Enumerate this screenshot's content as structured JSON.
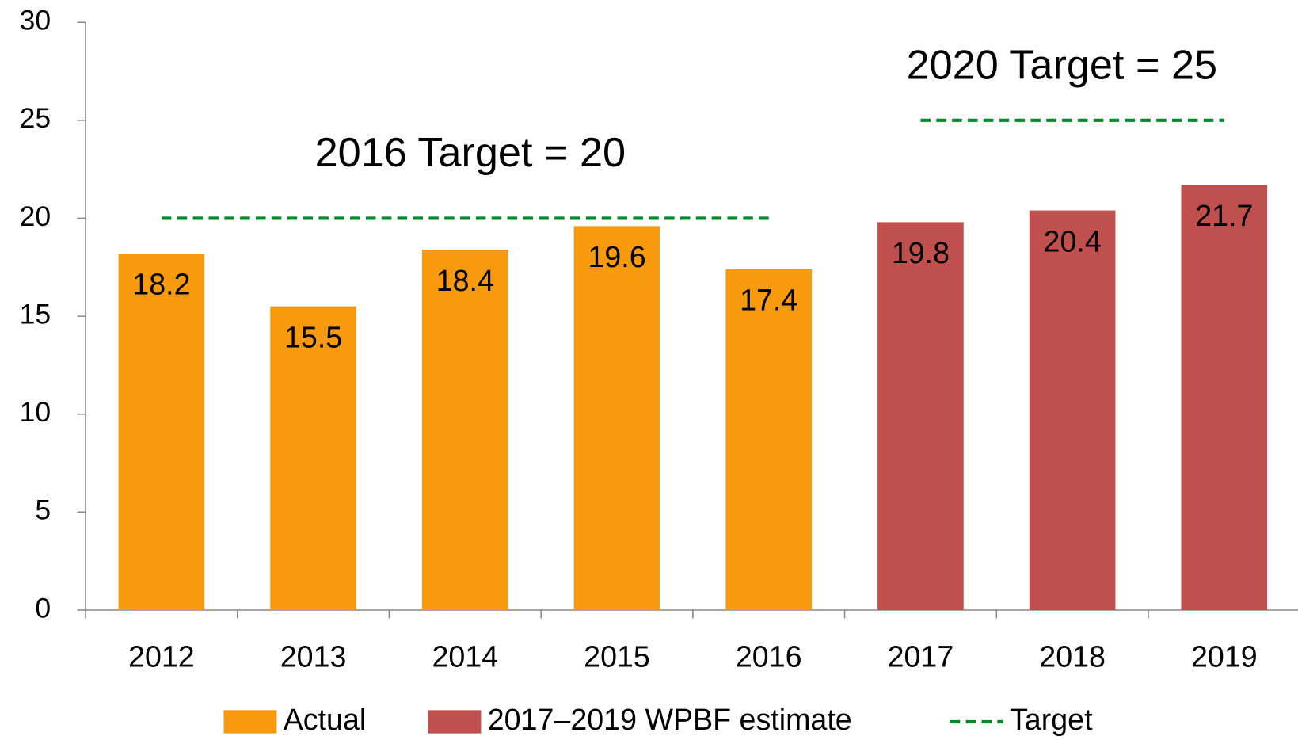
{
  "chart_data": {
    "type": "bar",
    "categories": [
      "2012",
      "2013",
      "2014",
      "2015",
      "2016",
      "2017",
      "2018",
      "2019"
    ],
    "series": [
      {
        "name": "Actual",
        "color": "#f79a0e",
        "values": [
          18.2,
          15.5,
          18.4,
          19.6,
          17.4,
          null,
          null,
          null
        ]
      },
      {
        "name": "2017–2019 WPBF estimate",
        "color": "#c0504d",
        "values": [
          null,
          null,
          null,
          null,
          null,
          19.8,
          20.4,
          21.7
        ]
      },
      {
        "name": "Target",
        "type": "line",
        "dashed": true,
        "color": "#00882b",
        "values": [
          20,
          20,
          20,
          20,
          20,
          25,
          25,
          25
        ]
      }
    ],
    "annotations": [
      "2016 Target = 20",
      "2020 Target = 25"
    ],
    "annotation_color": "#b01c1c",
    "ylim": [
      0,
      30
    ],
    "yticks": [
      0,
      5,
      10,
      15,
      20,
      25,
      30
    ],
    "grid": false,
    "legend": "bottom"
  }
}
